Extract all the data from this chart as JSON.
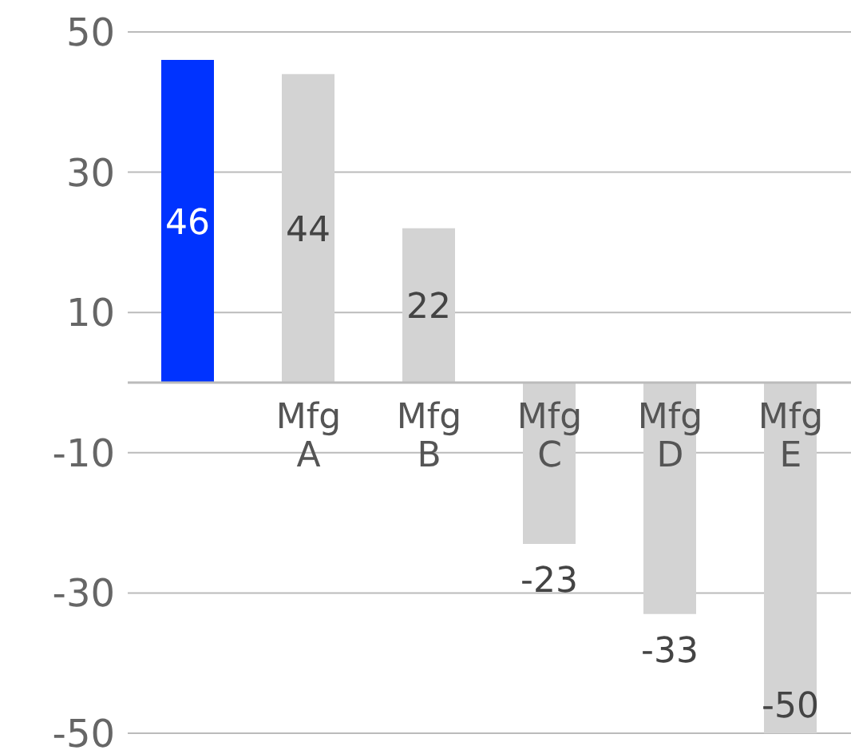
{
  "chart_data": {
    "type": "bar",
    "categories": [
      null,
      "Mfg\nA",
      "Mfg\nB",
      "Mfg\nC",
      "Mfg\nD",
      "Mfg\nE"
    ],
    "values": [
      46,
      44,
      22,
      -23,
      -33,
      -50
    ],
    "colors": [
      "#0033ff",
      "#d3d3d3",
      "#d3d3d3",
      "#d3d3d3",
      "#d3d3d3",
      "#d3d3d3"
    ],
    "ylim": [
      -50,
      50
    ],
    "yticks": [
      -50,
      -30,
      -10,
      10,
      30,
      50
    ],
    "grid": "y",
    "data_labels": true
  }
}
